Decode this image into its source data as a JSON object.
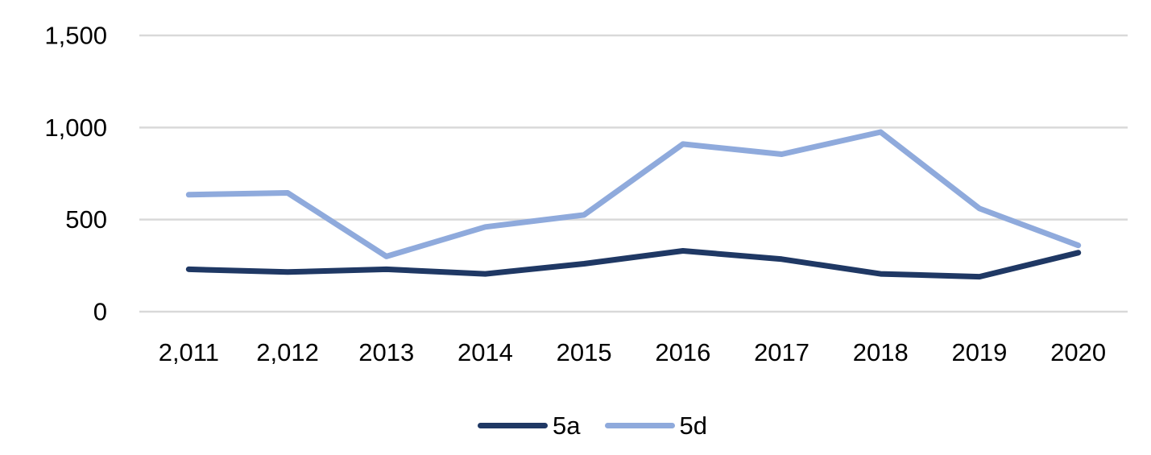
{
  "chart_data": {
    "type": "line",
    "title": "",
    "xlabel": "",
    "ylabel": "",
    "categories": [
      "2,011",
      "2,012",
      "2013",
      "2014",
      "2015",
      "2016",
      "2017",
      "2018",
      "2019",
      "2020"
    ],
    "series": [
      {
        "name": "5a",
        "color": "#1F3864",
        "values": [
          230,
          215,
          230,
          205,
          260,
          330,
          285,
          205,
          190,
          320
        ]
      },
      {
        "name": "5d",
        "color": "#8FAADC",
        "values": [
          635,
          645,
          300,
          460,
          525,
          910,
          855,
          975,
          560,
          360
        ]
      }
    ],
    "ylim": [
      0,
      1500
    ],
    "yticks": [
      0,
      500,
      1000,
      1500
    ],
    "ytick_labels": [
      "0",
      "500",
      "1,000",
      "1,500"
    ],
    "grid": "horizontal-only",
    "gridline_color": "#D9D9D9",
    "axis_text_color": "#000000",
    "background_color": "#FFFFFF",
    "legend_position": "bottom"
  }
}
